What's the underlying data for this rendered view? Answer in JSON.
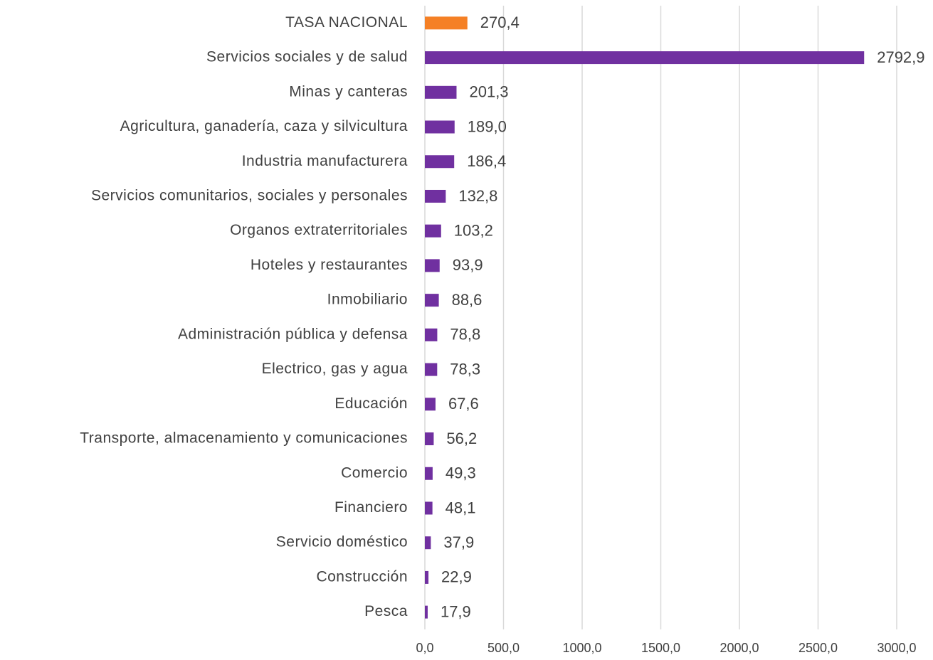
{
  "chart_data": {
    "type": "bar",
    "orientation": "horizontal",
    "categories": [
      "TASA NACIONAL",
      "Servicios sociales y de salud",
      "Minas y canteras",
      "Agricultura, ganadería, caza y silvicultura",
      "Industria manufacturera",
      "Servicios comunitarios, sociales y personales",
      "Organos extraterritoriales",
      "Hoteles y restaurantes",
      "Inmobiliario",
      "Administración pública y defensa",
      "Electrico, gas y agua",
      "Educación",
      "Transporte, almacenamiento y comunicaciones",
      "Comercio",
      "Financiero",
      "Servicio doméstico",
      "Construcción",
      "Pesca"
    ],
    "values": [
      270.4,
      2792.9,
      201.3,
      189.0,
      186.4,
      132.8,
      103.2,
      93.9,
      88.6,
      78.8,
      78.3,
      67.6,
      56.2,
      49.3,
      48.1,
      37.9,
      22.9,
      17.9
    ],
    "value_labels": [
      "270,4",
      "2792,9",
      "201,3",
      "189,0",
      "186,4",
      "132,8",
      "103,2",
      "93,9",
      "88,6",
      "78,8",
      "78,3",
      "67,6",
      "56,2",
      "49,3",
      "48,1",
      "37,9",
      "22,9",
      "17,9"
    ],
    "colors": [
      "#f58025",
      "#7030a0",
      "#7030a0",
      "#7030a0",
      "#7030a0",
      "#7030a0",
      "#7030a0",
      "#7030a0",
      "#7030a0",
      "#7030a0",
      "#7030a0",
      "#7030a0",
      "#7030a0",
      "#7030a0",
      "#7030a0",
      "#7030a0",
      "#7030a0",
      "#7030a0"
    ],
    "xlim": [
      0,
      3000
    ],
    "xticks": [
      {
        "value": 0,
        "label": "0,0"
      },
      {
        "value": 500,
        "label": "500,0"
      },
      {
        "value": 1000,
        "label": "1000,0"
      },
      {
        "value": 1500,
        "label": "1500,0"
      },
      {
        "value": 2000,
        "label": "2000,0"
      },
      {
        "value": 2500,
        "label": "2500,0"
      },
      {
        "value": 3000,
        "label": "3000,0"
      }
    ],
    "grid": true
  }
}
